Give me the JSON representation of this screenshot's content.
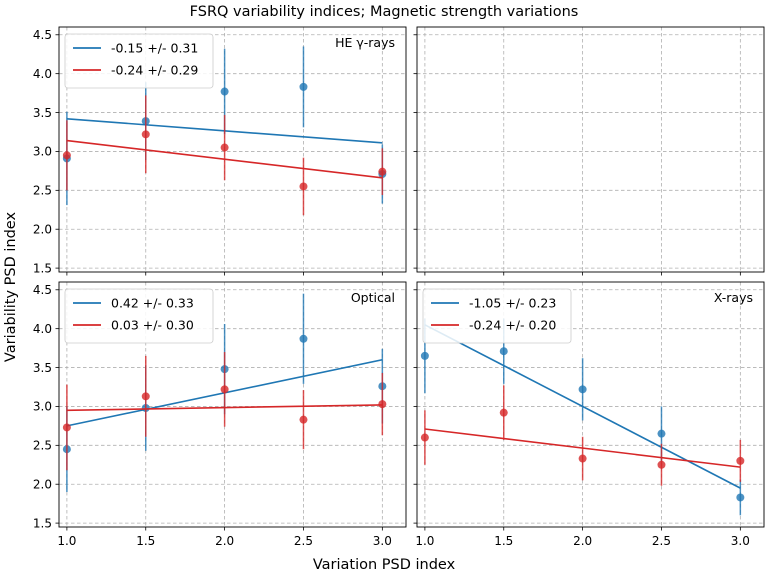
{
  "figure": {
    "title": "FSRQ variability indices; Magnetic strength variations",
    "xlabel": "Variation PSD index",
    "ylabel": "Variability PSD index"
  },
  "colors": {
    "blue": "#1f77b4",
    "red": "#d62728",
    "grid": "#b0b0b0"
  },
  "chart_data": [
    {
      "type": "scatter",
      "panel": "top-left",
      "label": "HE γ-rays",
      "xlim": [
        0.95,
        3.15
      ],
      "ylim": [
        1.45,
        4.6
      ],
      "xticks": [
        1.0,
        1.5,
        2.0,
        2.5,
        3.0
      ],
      "yticks": [
        1.5,
        2.0,
        2.5,
        3.0,
        3.5,
        4.0,
        4.5
      ],
      "show_xticklabels": false,
      "show_yticklabels": true,
      "legend_loc": "upper-left",
      "series": [
        {
          "name": "-0.15 +/- 0.31",
          "color": "#1f77b4",
          "x": [
            1.0,
            1.5,
            2.0,
            2.5,
            3.0
          ],
          "y": [
            2.91,
            3.39,
            3.77,
            3.83,
            2.71
          ],
          "yerr": [
            0.6,
            0.5,
            0.55,
            0.52,
            0.38
          ],
          "fit": [
            [
              1.0,
              3.42
            ],
            [
              3.0,
              3.11
            ]
          ]
        },
        {
          "name": "-0.24 +/- 0.29",
          "color": "#d62728",
          "x": [
            1.0,
            1.5,
            2.0,
            2.5,
            3.0
          ],
          "y": [
            2.95,
            3.22,
            3.05,
            2.55,
            2.74
          ],
          "yerr": [
            0.45,
            0.5,
            0.42,
            0.37,
            0.3
          ],
          "fit": [
            [
              1.0,
              3.14
            ],
            [
              3.0,
              2.66
            ]
          ]
        }
      ]
    },
    {
      "type": "scatter",
      "panel": "top-right",
      "label": "",
      "xlim": [
        0.95,
        3.15
      ],
      "ylim": [
        1.45,
        4.6
      ],
      "xticks": [
        1.0,
        1.5,
        2.0,
        2.5,
        3.0
      ],
      "yticks": [
        1.5,
        2.0,
        2.5,
        3.0,
        3.5,
        4.0,
        4.5
      ],
      "show_xticklabels": false,
      "show_yticklabels": false,
      "legend_loc": "none",
      "series": []
    },
    {
      "type": "scatter",
      "panel": "bottom-left",
      "label": "Optical",
      "xlim": [
        0.95,
        3.15
      ],
      "ylim": [
        1.45,
        4.6
      ],
      "xticks": [
        1.0,
        1.5,
        2.0,
        2.5,
        3.0
      ],
      "yticks": [
        1.5,
        2.0,
        2.5,
        3.0,
        3.5,
        4.0,
        4.5
      ],
      "show_xticklabels": true,
      "show_yticklabels": true,
      "legend_loc": "upper-left",
      "series": [
        {
          "name": "0.42 +/- 0.33",
          "color": "#1f77b4",
          "x": [
            1.0,
            1.5,
            2.0,
            2.5,
            3.0
          ],
          "y": [
            2.45,
            2.98,
            3.48,
            3.87,
            3.26
          ],
          "yerr": [
            0.55,
            0.55,
            0.58,
            0.58,
            0.48
          ],
          "fit": [
            [
              1.0,
              2.75
            ],
            [
              3.0,
              3.6
            ]
          ]
        },
        {
          "name": "0.03 +/- 0.30",
          "color": "#d62728",
          "x": [
            1.0,
            1.5,
            2.0,
            2.5,
            3.0
          ],
          "y": [
            2.73,
            3.13,
            3.22,
            2.83,
            3.03
          ],
          "yerr": [
            0.55,
            0.52,
            0.48,
            0.38,
            0.4
          ],
          "fit": [
            [
              1.0,
              2.95
            ],
            [
              3.0,
              3.02
            ]
          ]
        }
      ]
    },
    {
      "type": "scatter",
      "panel": "bottom-right",
      "label": "X-rays",
      "xlim": [
        0.95,
        3.15
      ],
      "ylim": [
        1.45,
        4.6
      ],
      "xticks": [
        1.0,
        1.5,
        2.0,
        2.5,
        3.0
      ],
      "yticks": [
        1.5,
        2.0,
        2.5,
        3.0,
        3.5,
        4.0,
        4.5
      ],
      "show_xticklabels": true,
      "show_yticklabels": false,
      "legend_loc": "upper-left",
      "series": [
        {
          "name": "-1.05 +/- 0.23",
          "color": "#1f77b4",
          "x": [
            1.0,
            1.5,
            2.0,
            2.5,
            3.0
          ],
          "y": [
            3.65,
            3.71,
            3.22,
            2.65,
            1.83
          ],
          "yerr": [
            0.48,
            0.42,
            0.4,
            0.35,
            0.23
          ],
          "fit": [
            [
              1.0,
              4.05
            ],
            [
              3.0,
              1.95
            ]
          ]
        },
        {
          "name": "-0.24 +/- 0.20",
          "color": "#d62728",
          "x": [
            1.0,
            1.5,
            2.0,
            2.5,
            3.0
          ],
          "y": [
            2.6,
            2.92,
            2.33,
            2.25,
            2.3
          ],
          "yerr": [
            0.35,
            0.35,
            0.28,
            0.27,
            0.27
          ],
          "fit": [
            [
              1.0,
              2.71
            ],
            [
              3.0,
              2.22
            ]
          ]
        }
      ]
    }
  ]
}
